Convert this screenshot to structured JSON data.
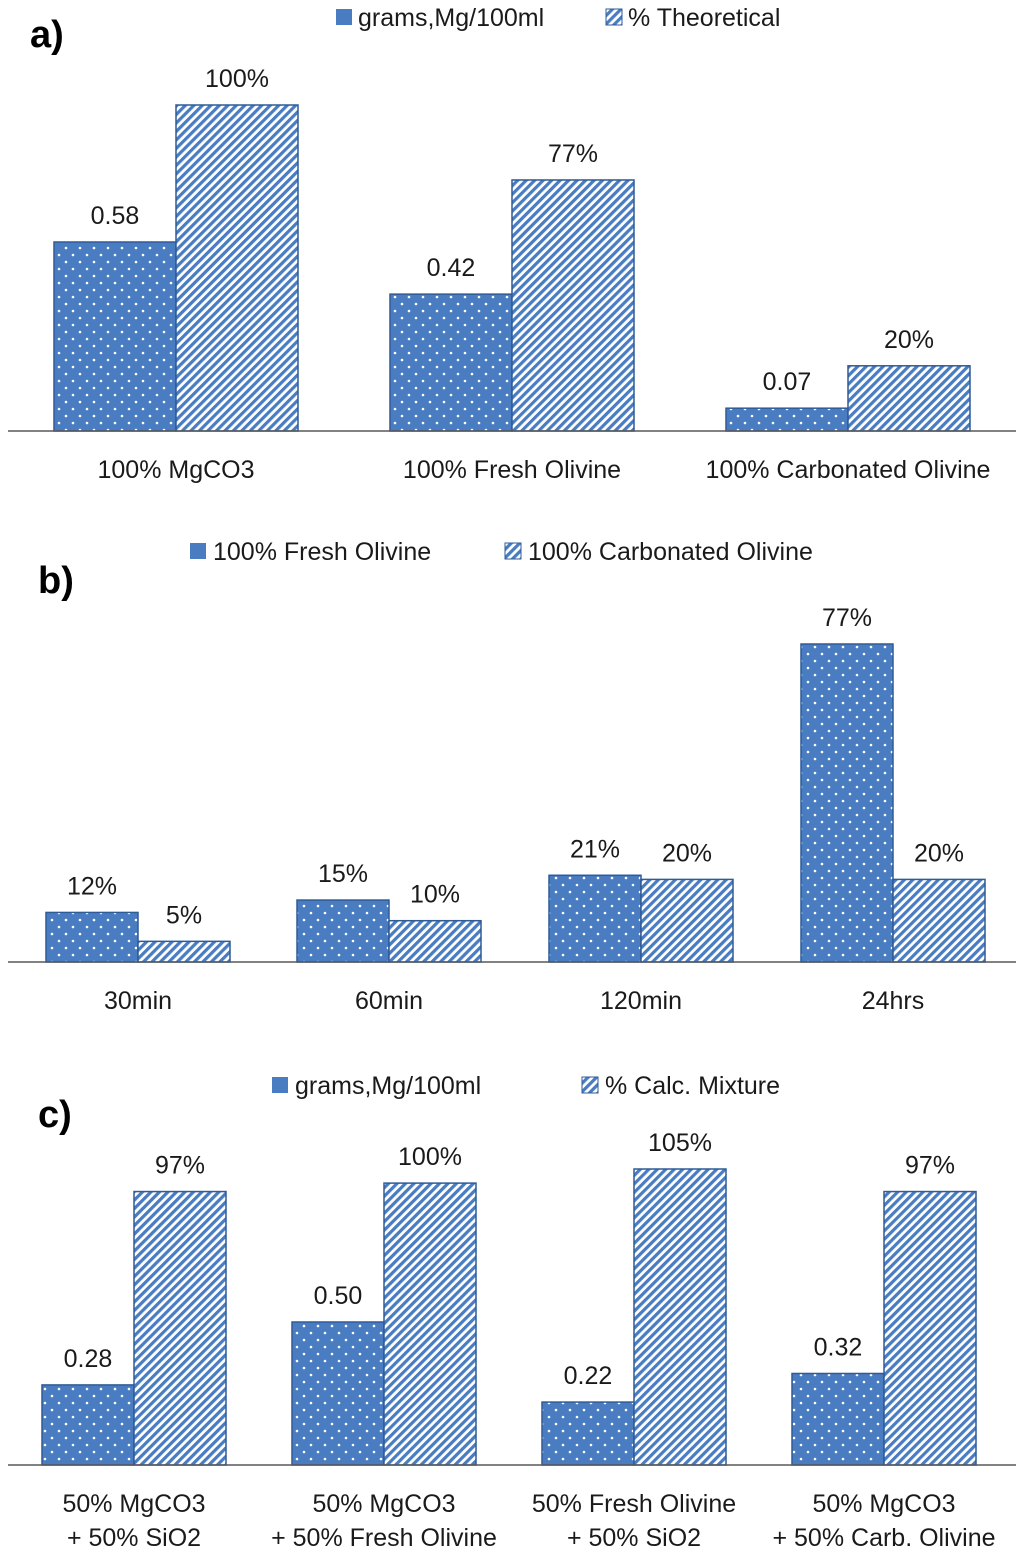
{
  "colors": {
    "bar": "#4a7cc1",
    "stroke": "#2f5b97",
    "axis": "#595959"
  },
  "chart_data": [
    {
      "type": "bar",
      "panel": "a)",
      "categories": [
        "100% MgCO3",
        "100% Fresh Olivine",
        "100% Carbonated Olivine"
      ],
      "series": [
        {
          "name": "grams,Mg/100ml",
          "pattern": "dots",
          "values": [
            0.58,
            0.42,
            0.07
          ],
          "labels": [
            "0.58",
            "0.42",
            "0.07"
          ]
        },
        {
          "name": "% Theoretical",
          "pattern": "stripes",
          "values": [
            100,
            77,
            20
          ],
          "labels": [
            "100%",
            "77%",
            "20%"
          ]
        }
      ],
      "legend": "top-center",
      "ylim": [
        0,
        100
      ]
    },
    {
      "type": "bar",
      "panel": "b)",
      "categories": [
        "30min",
        "60min",
        "120min",
        "24hrs"
      ],
      "series": [
        {
          "name": "100% Fresh Olivine",
          "pattern": "dots",
          "values": [
            12,
            15,
            21,
            77
          ],
          "labels": [
            "12%",
            "15%",
            "21%",
            "77%"
          ]
        },
        {
          "name": "100% Carbonated Olivine",
          "pattern": "stripes",
          "values": [
            5,
            10,
            20,
            20
          ],
          "labels": [
            "5%",
            "10%",
            "20%",
            "20%"
          ]
        }
      ],
      "legend": "top-center",
      "ylim": [
        0,
        77
      ]
    },
    {
      "type": "bar",
      "panel": "c)",
      "categories": [
        [
          "50% MgCO3",
          "+ 50% SiO2"
        ],
        [
          "50% MgCO3",
          "+ 50% Fresh Olivine"
        ],
        [
          "50% Fresh Olivine",
          "+ 50% SiO2"
        ],
        [
          "50% MgCO3",
          "+ 50% Carb. Olivine"
        ]
      ],
      "series": [
        {
          "name": "grams,Mg/100ml",
          "pattern": "dots",
          "values": [
            0.28,
            0.5,
            0.22,
            0.32
          ],
          "labels": [
            "0.28",
            "0.50",
            "0.22",
            "0.32"
          ]
        },
        {
          "name": "% Calc. Mixture",
          "pattern": "stripes",
          "values": [
            97,
            100,
            105,
            97
          ],
          "labels": [
            "97%",
            "100%",
            "105%",
            "97%"
          ]
        }
      ],
      "legend": "top-center",
      "ylim": [
        0,
        105
      ]
    }
  ]
}
